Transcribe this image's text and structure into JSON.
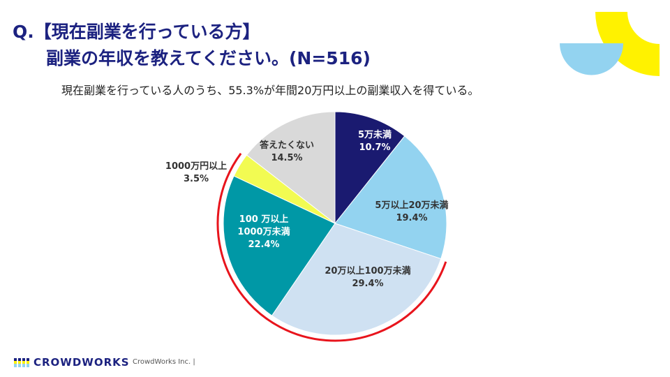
{
  "title": {
    "line1": "Q.【現在副業を行っている方】",
    "line2": "副業の年収を教えてください。(N=516)"
  },
  "subtitle": "現在副業を行っている人のうち、55.3%が年間20万円以上の副業収入を得ている。",
  "footer": {
    "logo": "CROWDWORKS",
    "company": "CrowdWorks Inc. |"
  },
  "colors": {
    "title": "#1c2280",
    "highlight_arc": "#e8141c",
    "deco_yellow": "#fff200",
    "deco_blue": "#93d3f0"
  },
  "chart_data": {
    "type": "pie",
    "start": "top, clockwise",
    "slices": [
      {
        "label": "5万未満",
        "value": 10.7,
        "value_label": "10.7%",
        "color": "#1a1a70",
        "text_color": "#ffffff"
      },
      {
        "label": "5万以上20万未満",
        "value": 19.4,
        "value_label": "19.4%",
        "color": "#93d3f0",
        "text_color": "#333333"
      },
      {
        "label": "20万以上100万未満",
        "value": 29.4,
        "value_label": "29.4%",
        "color": "#cfe1f2",
        "text_color": "#333333"
      },
      {
        "label": "100 万以上",
        "label2": "1000万未満",
        "value": 22.4,
        "value_label": "22.4%",
        "color": "#0098a6",
        "text_color": "#ffffff"
      },
      {
        "label": "1000万円以上",
        "value": 3.5,
        "value_label": "3.5%",
        "color": "#f2fb52",
        "text_color": "#333333",
        "outside": true
      },
      {
        "label": "答えたくない",
        "value": 14.5,
        "value_label": "14.5%",
        "color": "#d9d9d9",
        "text_color": "#333333"
      }
    ],
    "highlighted_slices": [
      "20万以上100万未満",
      "100 万以上 1000万未満",
      "1000万円以上"
    ]
  }
}
